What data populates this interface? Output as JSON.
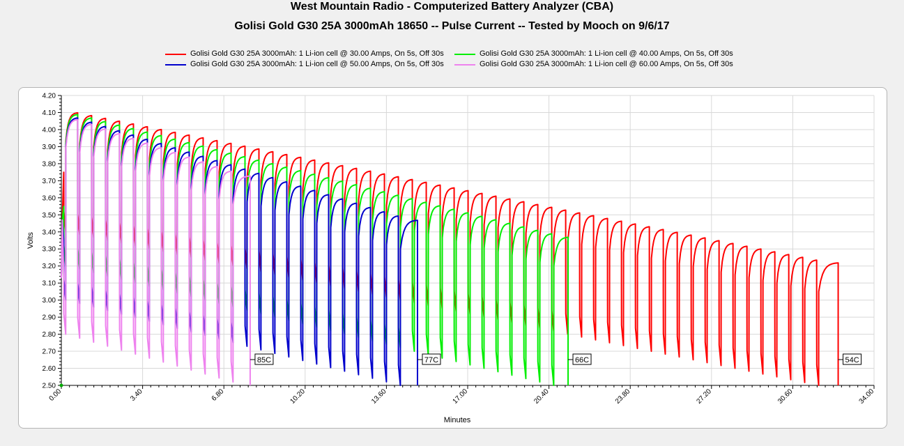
{
  "title": "West Mountain Radio - Computerized Battery Analyzer (CBA)",
  "subtitle": "Golisi Gold G30 25A 3000mAh 18650 -- Pulse Current -- Tested by Mooch on 9/6/17",
  "legend": {
    "left": [
      {
        "label": "Golisi Gold G30 25A 3000mAh: 1 Li-ion cell @ 30.00 Amps, On 5s, Off 30s",
        "color": "#ff0000"
      },
      {
        "label": "Golisi Gold G30 25A 3000mAh: 1 Li-ion cell @ 50.00 Amps, On 5s, Off 30s",
        "color": "#0000cc"
      }
    ],
    "right": [
      {
        "label": "Golisi Gold G30 25A 3000mAh: 1 Li-ion cell @ 40.00 Amps, On 5s, Off 30s",
        "color": "#00ee00"
      },
      {
        "label": "Golisi Gold G30 25A 3000mAh: 1 Li-ion cell @ 60.00 Amps, On 5s, Off 30s",
        "color": "#ee82ee"
      }
    ]
  },
  "chart_data": {
    "type": "line",
    "xlabel": "Minutes",
    "ylabel": "Volts",
    "xlim": [
      0,
      34
    ],
    "ylim": [
      2.5,
      4.2
    ],
    "x_ticks": [
      "0.00",
      "3.40",
      "6.80",
      "10.20",
      "13.60",
      "17.00",
      "20.40",
      "23.80",
      "27.20",
      "30.60",
      "34.00"
    ],
    "y_ticks": [
      "2.50",
      "2.60",
      "2.70",
      "2.80",
      "2.90",
      "3.00",
      "3.10",
      "3.20",
      "3.30",
      "3.40",
      "3.50",
      "3.60",
      "3.70",
      "3.80",
      "3.90",
      "4.00",
      "4.10",
      "4.20"
    ],
    "grid": true,
    "pulse_on_seconds": 5,
    "pulse_off_seconds": 30,
    "series": [
      {
        "name": "Golisi Gold G30 25A 3000mAh: 1 Li-ion cell @ 30.00 Amps, On 5s, Off 30s",
        "color": "#ff0000",
        "end_minutes": 32.5,
        "end_label": "54C",
        "rest_peak_volts_start": 4.1,
        "rest_peak_volts_end": 3.22,
        "load_min_volts_start": 3.4,
        "load_min_volts_end": 2.5
      },
      {
        "name": "Golisi Gold G30 25A 3000mAh: 1 Li-ion cell @ 40.00 Amps, On 5s, Off 30s",
        "color": "#00ee00",
        "end_minutes": 21.2,
        "end_label": "66C",
        "rest_peak_volts_start": 4.09,
        "rest_peak_volts_end": 3.37,
        "load_min_volts_start": 3.2,
        "load_min_volts_end": 2.5
      },
      {
        "name": "Golisi Gold G30 25A 3000mAh: 1 Li-ion cell @ 50.00 Amps, On 5s, Off 30s",
        "color": "#0000cc",
        "end_minutes": 14.9,
        "end_label": "77C",
        "rest_peak_volts_start": 4.07,
        "rest_peak_volts_end": 3.47,
        "load_min_volts_start": 3.0,
        "load_min_volts_end": 2.5
      },
      {
        "name": "Golisi Gold G30 25A 3000mAh: 1 Li-ion cell @ 60.00 Amps, On 5s, Off 30s",
        "color": "#ee82ee",
        "end_minutes": 7.9,
        "end_label": "85C",
        "rest_peak_volts_start": 4.06,
        "rest_peak_volts_end": 3.73,
        "load_min_volts_start": 2.8,
        "load_min_volts_end": 2.52
      }
    ]
  }
}
